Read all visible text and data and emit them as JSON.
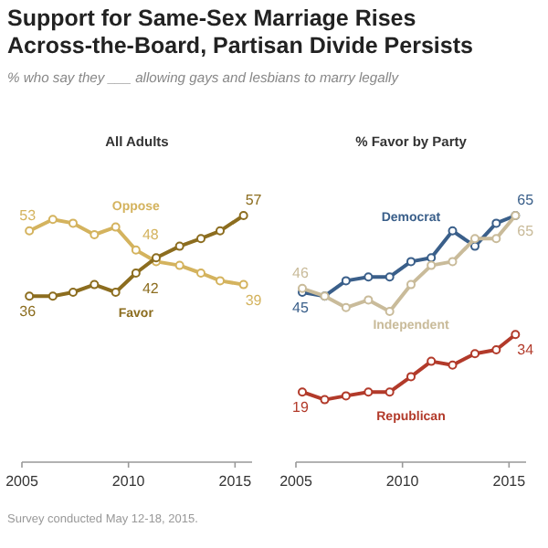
{
  "chart_data": [
    {
      "type": "other",
      "title": "Support for Same-Sex Marriage Rises Across-the-Board, Partisan Divide Persists",
      "subtitle": "% who say they ___ allowing gays and lesbians to marry legally",
      "annotations": [
        "Survey conducted May 12-18, 2015."
      ]
    },
    {
      "type": "line",
      "title": "All Adults",
      "xlim": [
        2005,
        2015.8
      ],
      "xticks": [
        2005,
        2010,
        2015
      ],
      "tick_labels": "x",
      "marker": "circle",
      "x": [
        2005.35,
        2006.45,
        2007.4,
        2008.4,
        2009.4,
        2010.35,
        2011.3,
        2012.4,
        2013.4,
        2014.3,
        2015.4
      ],
      "series": [
        {
          "name": "Oppose",
          "color": "#d4b35e",
          "values": [
            53,
            56,
            55,
            52,
            54,
            48,
            45,
            44,
            42,
            40,
            39
          ],
          "value_labels": [
            "53",
            null,
            null,
            null,
            null,
            "48",
            null,
            null,
            null,
            null,
            "39"
          ]
        },
        {
          "name": "Favor",
          "color": "#8c6d1f",
          "values": [
            36,
            36,
            37,
            39,
            37,
            42,
            46,
            49,
            51,
            53,
            57
          ],
          "value_labels": [
            "36",
            null,
            null,
            null,
            null,
            "42",
            null,
            null,
            null,
            null,
            "57"
          ]
        }
      ]
    },
    {
      "type": "line",
      "title": "% Favor by Party",
      "xlim": [
        2005,
        2015.8
      ],
      "xticks": [
        2005,
        2010,
        2015
      ],
      "tick_labels": "x",
      "marker": "circle",
      "x": [
        2005.3,
        2006.35,
        2007.35,
        2008.4,
        2009.4,
        2010.4,
        2011.35,
        2012.35,
        2013.4,
        2014.4,
        2015.3
      ],
      "series": [
        {
          "name": "Democrat",
          "color": "#3a5f8a",
          "values": [
            45,
            44,
            48,
            49,
            49,
            53,
            54,
            61,
            57,
            63,
            65
          ],
          "value_labels": [
            "45",
            null,
            null,
            null,
            null,
            null,
            null,
            null,
            null,
            null,
            "65"
          ]
        },
        {
          "name": "Independent",
          "color": "#c9bb9a",
          "values": [
            46,
            44,
            41,
            43,
            40,
            47,
            52,
            53,
            59,
            59,
            65
          ],
          "value_labels": [
            "46",
            null,
            null,
            null,
            null,
            null,
            null,
            null,
            null,
            null,
            "65"
          ]
        },
        {
          "name": "Republican",
          "color": "#b23a2a",
          "values": [
            19,
            17,
            18,
            19,
            19,
            23,
            27,
            26,
            29,
            30,
            34
          ],
          "value_labels": [
            "19",
            null,
            null,
            null,
            null,
            null,
            null,
            null,
            null,
            null,
            "34"
          ]
        }
      ]
    }
  ]
}
